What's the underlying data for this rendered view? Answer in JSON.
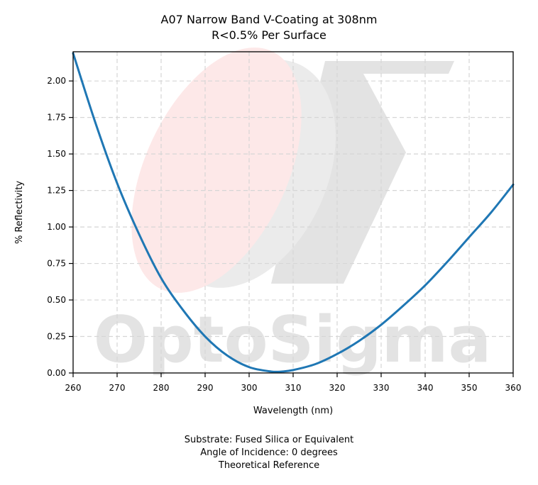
{
  "chart_data": {
    "type": "line",
    "title": [
      "A07 Narrow Band V-Coating at 308nm",
      "R<0.5% Per Surface"
    ],
    "xlabel": "Wavelength (nm)",
    "ylabel": "% Reflectivity",
    "xlim": [
      260,
      360
    ],
    "ylim": [
      0,
      2.2
    ],
    "xticks": [
      "260",
      "270",
      "280",
      "290",
      "300",
      "310",
      "320",
      "330",
      "340",
      "350",
      "360"
    ],
    "yticks": [
      "0.00",
      "0.25",
      "0.50",
      "0.75",
      "1.00",
      "1.25",
      "1.50",
      "1.75",
      "2.00"
    ],
    "grid": true,
    "series": [
      {
        "color": "#1f77b4",
        "x": [
          260,
          265,
          270,
          275,
          280,
          285,
          290,
          295,
          300,
          305,
          307.5,
          310,
          315,
          320,
          325,
          330,
          335,
          340,
          345,
          350,
          355,
          360
        ],
        "y": [
          2.19,
          1.72,
          1.3,
          0.95,
          0.65,
          0.43,
          0.25,
          0.12,
          0.04,
          0.01,
          0.01,
          0.02,
          0.06,
          0.13,
          0.22,
          0.33,
          0.46,
          0.6,
          0.76,
          0.93,
          1.1,
          1.29
        ]
      }
    ]
  },
  "watermark": {
    "text": "OptoSigma",
    "symbol": "Σ",
    "color": "#e3e3e3",
    "accent": "#fde8e8"
  },
  "footnotes": [
    "Substrate: Fused Silica or Equivalent",
    "Angle of Incidence: 0 degrees",
    "Theoretical Reference"
  ]
}
